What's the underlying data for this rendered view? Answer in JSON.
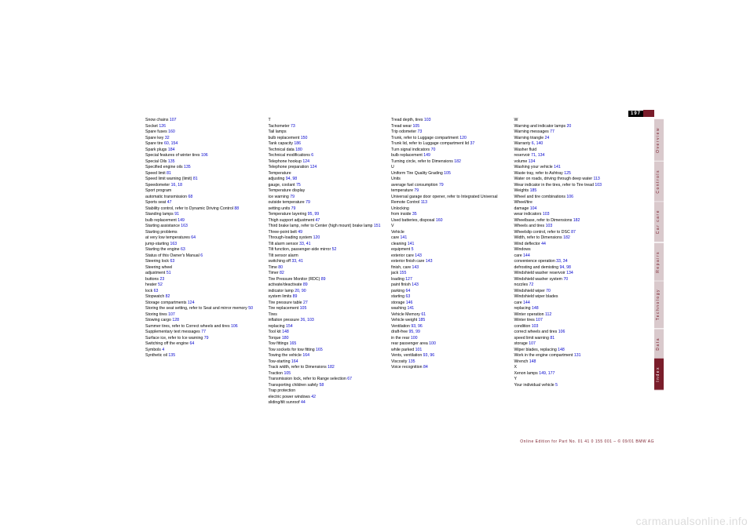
{
  "page_number": "197",
  "watermark": "carmanualsonline.info",
  "footer": "Online Edition for Part No. 01 41 0 155 001 – © 09/01 BMW AG",
  "tabs": [
    {
      "label": "Overview",
      "active": false
    },
    {
      "label": "Controls",
      "active": false
    },
    {
      "label": "Car care",
      "active": false
    },
    {
      "label": "Repairs",
      "active": false
    },
    {
      "label": "Technology",
      "active": false
    },
    {
      "label": "Data",
      "active": false
    },
    {
      "label": "Index",
      "active": true
    }
  ],
  "columns": [
    [
      {
        "t": "Snow chains ",
        "p": "107"
      },
      {
        "t": "Socket ",
        "p": "126"
      },
      {
        "t": "Spare fuses ",
        "p": "160"
      },
      {
        "t": "Spare key ",
        "p": "32"
      },
      {
        "t": "Spare tire ",
        "p": "60, 154"
      },
      {
        "t": "Spark plugs ",
        "p": "184"
      },
      {
        "t": "Special features of winter tires ",
        "p": "106"
      },
      {
        "t": "Special Oils ",
        "p": "135"
      },
      {
        "t": "Specified engine oils ",
        "p": "135"
      },
      {
        "t": "Speed limit ",
        "p": "81"
      },
      {
        "t": "Speed limit warning (limit) ",
        "p": "81"
      },
      {
        "t": "Speedometer ",
        "p": "16, 18"
      },
      {
        "t": "Sport program ",
        "p": ""
      },
      {
        "t": "  automatic transmission ",
        "p": "68"
      },
      {
        "t": "Sports seat ",
        "p": "47"
      },
      {
        "t": "Stability control, refer to Dynamic Driving Control ",
        "p": "88"
      },
      {
        "t": "Standing lamps ",
        "p": "91"
      },
      {
        "t": "  bulb replacement ",
        "p": "149"
      },
      {
        "t": "Starting assistance ",
        "p": "163"
      },
      {
        "t": "Starting problems ",
        "p": ""
      },
      {
        "t": "  at very low temperatures ",
        "p": "64"
      },
      {
        "t": "  jump-starting ",
        "p": "163"
      },
      {
        "t": "Starting the engine ",
        "p": "63"
      },
      {
        "t": "Status of this Owner's Manual ",
        "p": "6"
      },
      {
        "t": "Steering lock ",
        "p": "63"
      },
      {
        "t": "Steering wheel ",
        "p": ""
      },
      {
        "t": "  adjustment ",
        "p": "51"
      },
      {
        "t": "  buttons ",
        "p": "23"
      },
      {
        "t": "  heater ",
        "p": "52"
      },
      {
        "t": "  lock ",
        "p": "63"
      },
      {
        "t": "Stopwatch ",
        "p": "82"
      },
      {
        "t": "Storage compartments ",
        "p": "124"
      },
      {
        "t": "Storing the seat setting, refer to Seat and mirror memory ",
        "p": "50"
      },
      {
        "t": "Storing tires ",
        "p": "107"
      },
      {
        "t": "Stowing cargo ",
        "p": "128"
      },
      {
        "t": "Summer tires, refer to Correct wheels and tires ",
        "p": "106"
      },
      {
        "t": "Supplementary text messages ",
        "p": "77"
      },
      {
        "t": "Surface ice, refer to Ice warning ",
        "p": "79"
      },
      {
        "t": "Switching off the engine ",
        "p": "64"
      },
      {
        "t": "Symbols ",
        "p": "4"
      },
      {
        "t": "Synthetic oil ",
        "p": "135"
      }
    ],
    [
      {
        "t": "T",
        "p": ""
      },
      {
        "t": "Tachometer ",
        "p": "73"
      },
      {
        "t": "Tail lamps ",
        "p": ""
      },
      {
        "t": "  bulb replacement ",
        "p": "150"
      },
      {
        "t": "Tank capacity ",
        "p": "186"
      },
      {
        "t": "Technical data ",
        "p": "180"
      },
      {
        "t": "Technical modifications ",
        "p": "6"
      },
      {
        "t": "Telephone hookup ",
        "p": "124"
      },
      {
        "t": "Telephone preparation ",
        "p": "124"
      },
      {
        "t": "Temperature ",
        "p": ""
      },
      {
        "t": "  adjusting ",
        "p": "94, 98"
      },
      {
        "t": "  gauge, coolant ",
        "p": "75"
      },
      {
        "t": "Temperature display ",
        "p": ""
      },
      {
        "t": "  ice warning ",
        "p": "79"
      },
      {
        "t": "  outside temperature ",
        "p": "79"
      },
      {
        "t": "  setting units ",
        "p": "79"
      },
      {
        "t": "Temperature layering ",
        "p": "95, 99"
      },
      {
        "t": "Thigh support adjustment ",
        "p": "47"
      },
      {
        "t": "Third brake lamp, refer to Center (high mount) brake lamp ",
        "p": "151"
      },
      {
        "t": "Three-point belt ",
        "p": "49"
      },
      {
        "t": "Through-loading system ",
        "p": "120"
      },
      {
        "t": "Tilt alarm sensor ",
        "p": "33, 41"
      },
      {
        "t": "Tilt function, passenger-side mirror ",
        "p": "52"
      },
      {
        "t": "Tilt sensor alarm ",
        "p": ""
      },
      {
        "t": "  switching off ",
        "p": "33, 41"
      },
      {
        "t": "Time ",
        "p": "80"
      },
      {
        "t": "Timer ",
        "p": "82"
      },
      {
        "t": "Tire Pressure Monitor (RDC) ",
        "p": "89"
      },
      {
        "t": "  activate/deactivate ",
        "p": "89"
      },
      {
        "t": "  indicator lamp ",
        "p": "20, 90"
      },
      {
        "t": "  system limits ",
        "p": "89"
      },
      {
        "t": "Tire pressure table ",
        "p": "27"
      },
      {
        "t": "Tire replacement ",
        "p": "105"
      },
      {
        "t": "Tires ",
        "p": ""
      },
      {
        "t": "  inflation pressure ",
        "p": "26, 103"
      },
      {
        "t": "  replacing ",
        "p": "154"
      },
      {
        "t": "Tool kit ",
        "p": "148"
      },
      {
        "t": "Torque ",
        "p": "180"
      },
      {
        "t": "Tow fittings ",
        "p": "165"
      },
      {
        "t": "Tow sockets for tow fitting ",
        "p": "165"
      },
      {
        "t": "Towing the vehicle ",
        "p": "164"
      },
      {
        "t": "Tow-starting ",
        "p": "164"
      },
      {
        "t": "Track width, refer to Dimensions ",
        "p": "182"
      },
      {
        "t": "Traction ",
        "p": "105"
      },
      {
        "t": "Transmission lock, refer to Range selection ",
        "p": "67"
      },
      {
        "t": "Transporting children safely ",
        "p": "58"
      },
      {
        "t": "Trap protection ",
        "p": ""
      },
      {
        "t": "  electric power windows ",
        "p": "42"
      },
      {
        "t": "  sliding/tilt sunroof ",
        "p": "44"
      }
    ],
    [
      {
        "t": "Tread depth, tires ",
        "p": "103"
      },
      {
        "t": "Tread wear ",
        "p": "105"
      },
      {
        "t": "Trip odometer ",
        "p": "73"
      },
      {
        "t": "Trunk, refer to Luggage compartment ",
        "p": "120"
      },
      {
        "t": "Trunk lid, refer to Luggage compartment lid ",
        "p": "37"
      },
      {
        "t": "Turn signal indicators ",
        "p": "70"
      },
      {
        "t": "  bulb replacement ",
        "p": "149"
      },
      {
        "t": "Turning circle, refer to Dimensions ",
        "p": "182"
      },
      {
        "t": "",
        "p": ""
      },
      {
        "t": "U",
        "p": ""
      },
      {
        "t": "Uniform Tire Quality Grading ",
        "p": "105"
      },
      {
        "t": "Units ",
        "p": ""
      },
      {
        "t": "  average fuel consumption ",
        "p": "79"
      },
      {
        "t": "  temperature ",
        "p": "79"
      },
      {
        "t": "Universal garage door opener, refer to Integrated Universal Remote Control ",
        "p": "113"
      },
      {
        "t": "Unlocking ",
        "p": ""
      },
      {
        "t": "  from inside ",
        "p": "35"
      },
      {
        "t": "Used batteries, disposal ",
        "p": "160"
      },
      {
        "t": "",
        "p": ""
      },
      {
        "t": "V",
        "p": ""
      },
      {
        "t": "Vehicle ",
        "p": ""
      },
      {
        "t": "  care ",
        "p": "141"
      },
      {
        "t": "  cleaning ",
        "p": "141"
      },
      {
        "t": "  equipment ",
        "p": "5"
      },
      {
        "t": "  exterior care ",
        "p": "143"
      },
      {
        "t": "  exterior finish care ",
        "p": "143"
      },
      {
        "t": "  finish, care ",
        "p": "143"
      },
      {
        "t": "  jack ",
        "p": "155"
      },
      {
        "t": "  loading ",
        "p": "127"
      },
      {
        "t": "  paint finish ",
        "p": "143"
      },
      {
        "t": "  parking ",
        "p": "64"
      },
      {
        "t": "  starting ",
        "p": "63"
      },
      {
        "t": "  storage ",
        "p": "146"
      },
      {
        "t": "  washing ",
        "p": "141"
      },
      {
        "t": "Vehicle Memory ",
        "p": "61"
      },
      {
        "t": "Vehicle weight ",
        "p": "185"
      },
      {
        "t": "Ventilation ",
        "p": "93, 96"
      },
      {
        "t": "  draft-free ",
        "p": "95, 99"
      },
      {
        "t": "  in the rear ",
        "p": "100"
      },
      {
        "t": "  rear passenger area ",
        "p": "100"
      },
      {
        "t": "  while parked ",
        "p": "101"
      },
      {
        "t": "Vents, ventilation ",
        "p": "93, 96"
      },
      {
        "t": "Viscosity ",
        "p": "135"
      },
      {
        "t": "Voice recognition ",
        "p": "84"
      }
    ],
    [
      {
        "t": "W",
        "p": ""
      },
      {
        "t": "Warning and indicator lamps ",
        "p": "20"
      },
      {
        "t": "Warning messages ",
        "p": "77"
      },
      {
        "t": "Warning triangle ",
        "p": "24"
      },
      {
        "t": "Warranty ",
        "p": "6, 140"
      },
      {
        "t": "Washer fluid ",
        "p": ""
      },
      {
        "t": "  reservoir ",
        "p": "71, 134"
      },
      {
        "t": "  volume ",
        "p": "134"
      },
      {
        "t": "Washing your vehicle ",
        "p": "141"
      },
      {
        "t": "Waste tray, refer to Ashtray ",
        "p": "125"
      },
      {
        "t": "Water on roads, driving through deep water ",
        "p": "113"
      },
      {
        "t": "Wear indicator in the tires, refer to Tire tread ",
        "p": "103"
      },
      {
        "t": "Weights ",
        "p": "185"
      },
      {
        "t": "Wheel and tire combinations ",
        "p": "106"
      },
      {
        "t": "Wheel/tire ",
        "p": ""
      },
      {
        "t": "  damage ",
        "p": "104"
      },
      {
        "t": "  wear indicators ",
        "p": "103"
      },
      {
        "t": "Wheelbase, refer to Dimensions ",
        "p": "182"
      },
      {
        "t": "Wheels and tires ",
        "p": "103"
      },
      {
        "t": "Wheelslip control, refer to DSC ",
        "p": "87"
      },
      {
        "t": "Width, refer to Dimensions ",
        "p": "182"
      },
      {
        "t": "Wind deflector ",
        "p": "44"
      },
      {
        "t": "Windows ",
        "p": ""
      },
      {
        "t": "  care ",
        "p": "144"
      },
      {
        "t": "  convenience operation ",
        "p": "33, 34"
      },
      {
        "t": "  defrosting and demisting ",
        "p": "94, 98"
      },
      {
        "t": "Windshield washer reservoir ",
        "p": "134"
      },
      {
        "t": "Windshield washer system ",
        "p": "70"
      },
      {
        "t": "  nozzles ",
        "p": "72"
      },
      {
        "t": "Windshield wiper ",
        "p": "70"
      },
      {
        "t": "Windshield wiper blades ",
        "p": ""
      },
      {
        "t": "  care ",
        "p": "144"
      },
      {
        "t": "  replacing ",
        "p": "148"
      },
      {
        "t": "Winter operation ",
        "p": "112"
      },
      {
        "t": "Winter tires ",
        "p": "107"
      },
      {
        "t": "  condition ",
        "p": "103"
      },
      {
        "t": "  correct wheels and tires ",
        "p": "106"
      },
      {
        "t": "  speed limit warning ",
        "p": "81"
      },
      {
        "t": "  storage ",
        "p": "107"
      },
      {
        "t": "Wiper blades, replacing ",
        "p": "148"
      },
      {
        "t": "Work in the engine compartment ",
        "p": "131"
      },
      {
        "t": "Wrench ",
        "p": "148"
      },
      {
        "t": "",
        "p": ""
      },
      {
        "t": "X",
        "p": ""
      },
      {
        "t": "Xenon lamps ",
        "p": "149, 177"
      },
      {
        "t": "",
        "p": ""
      },
      {
        "t": "Y",
        "p": ""
      },
      {
        "t": "Your individual vehicle ",
        "p": "5"
      }
    ]
  ]
}
